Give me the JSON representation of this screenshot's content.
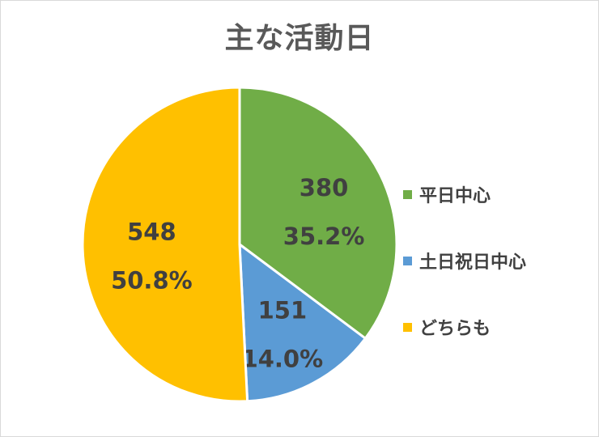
{
  "chart_data": {
    "type": "pie",
    "title": "主な活動日",
    "categories": [
      "平日中心",
      "土日祝日中心",
      "どちらも"
    ],
    "values": [
      380,
      151,
      548
    ],
    "percent_labels": [
      "35.2%",
      "14.0%",
      "50.8%"
    ],
    "colors": [
      "#70ad47",
      "#5b9bd5",
      "#ffc000"
    ],
    "start_angle": "12 o'clock",
    "direction": "clockwise",
    "legend_position": "right",
    "data_labels": "value and percent"
  }
}
